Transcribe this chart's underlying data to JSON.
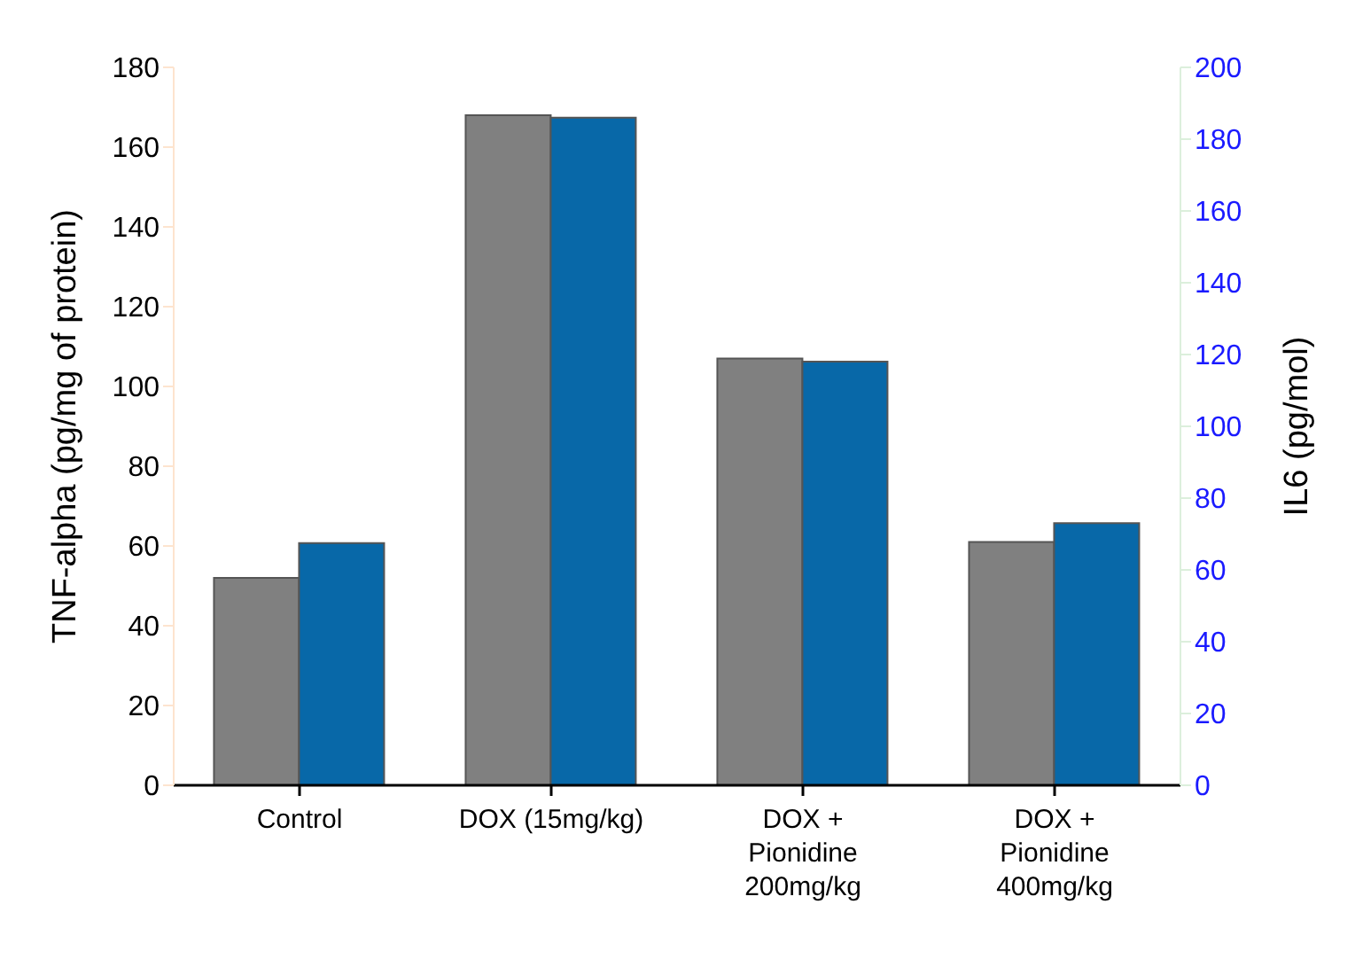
{
  "chart_data": {
    "type": "bar",
    "ylabel": "TNF-alpha (pg/mg of protein)",
    "y2label": "IL6 (pg/mol)",
    "categories": [
      "Control",
      "DOX (15mg/kg)",
      "DOX + Pionidine 200mg/kg",
      "DOX + Pionidine 400mg/kg"
    ],
    "series": [
      {
        "color": "#808080",
        "values": [
          52,
          168,
          107,
          61
        ]
      },
      {
        "color": "#0868a8",
        "axis": "y2",
        "values": [
          67.5,
          186,
          118,
          73
        ]
      }
    ],
    "ylim": [
      0,
      180
    ],
    "yticks": [
      0,
      20,
      40,
      60,
      80,
      100,
      120,
      140,
      160,
      180
    ],
    "y2lim": [
      0,
      200
    ],
    "y2ticks": [
      0,
      20,
      40,
      60,
      80,
      100,
      120,
      140,
      160,
      180,
      200
    ],
    "grid": false,
    "legend": false
  }
}
